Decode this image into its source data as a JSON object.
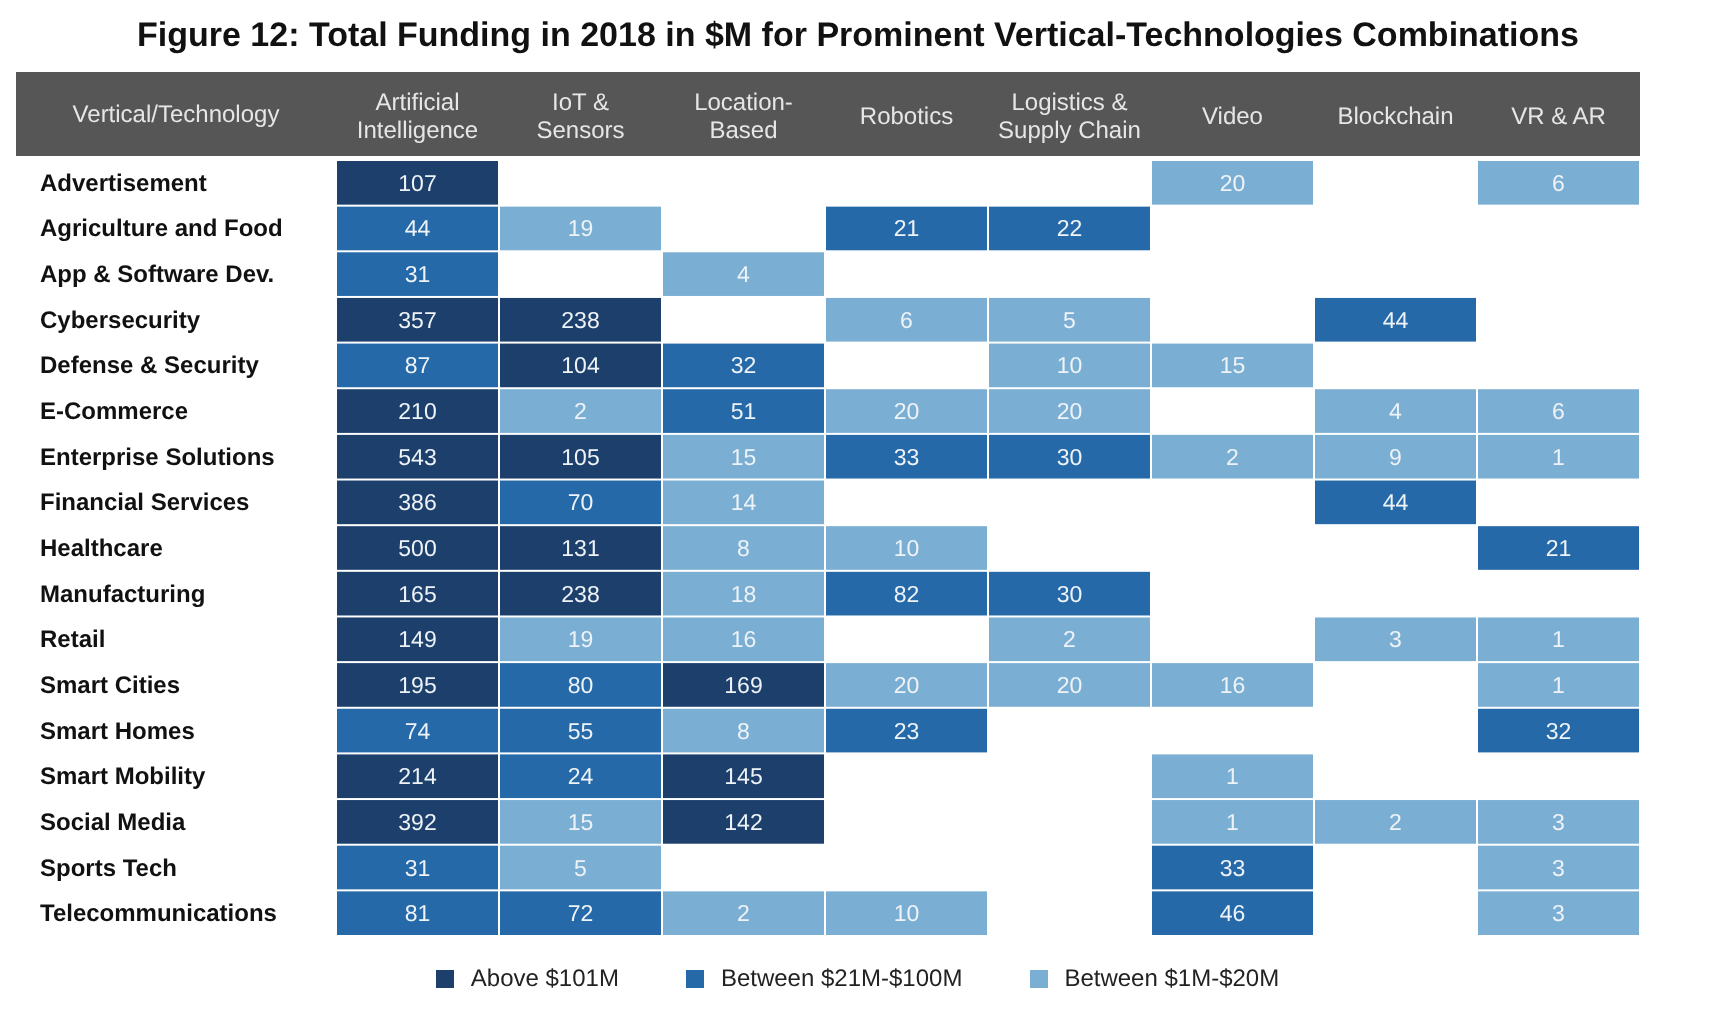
{
  "chart_data": {
    "type": "heatmap",
    "title": "Figure 12: Total Funding in 2018 in $M for Prominent Vertical-Technologies Combinations",
    "ylabel": "Vertical/Technology",
    "categories": [
      "Artificial Intelligence",
      "IoT & Sensors",
      "Location-Based",
      "Robotics",
      "Logistics & Supply Chain",
      "Video",
      "Blockchain",
      "VR & AR"
    ],
    "y_categories": [
      "Advertisement",
      "Agriculture and Food",
      "App & Software Dev.",
      "Cybersecurity",
      "Defense & Security",
      "E-Commerce",
      "Enterprise Solutions",
      "Financial Services",
      "Healthcare",
      "Manufacturing",
      "Retail",
      "Smart Cities",
      "Smart Homes",
      "Smart Mobility",
      "Social Media",
      "Sports Tech",
      "Telecommunications"
    ],
    "cells": [
      [
        107,
        null,
        null,
        null,
        null,
        20,
        null,
        6
      ],
      [
        44,
        19,
        null,
        21,
        22,
        null,
        null,
        null
      ],
      [
        31,
        null,
        4,
        null,
        null,
        null,
        null,
        null
      ],
      [
        357,
        238,
        null,
        6,
        5,
        null,
        44,
        null
      ],
      [
        87,
        104,
        32,
        null,
        10,
        15,
        null,
        null
      ],
      [
        210,
        2,
        51,
        20,
        20,
        null,
        4,
        6
      ],
      [
        543,
        105,
        15,
        33,
        30,
        2,
        9,
        1
      ],
      [
        386,
        70,
        14,
        null,
        null,
        null,
        44,
        null
      ],
      [
        500,
        131,
        8,
        10,
        null,
        null,
        null,
        21
      ],
      [
        165,
        238,
        18,
        82,
        30,
        null,
        null,
        null
      ],
      [
        149,
        19,
        16,
        null,
        2,
        null,
        3,
        1
      ],
      [
        195,
        80,
        169,
        20,
        20,
        16,
        null,
        1
      ],
      [
        74,
        55,
        8,
        23,
        null,
        null,
        null,
        32
      ],
      [
        214,
        24,
        145,
        null,
        null,
        1,
        null,
        null
      ],
      [
        392,
        15,
        142,
        null,
        null,
        1,
        2,
        3
      ],
      [
        31,
        5,
        null,
        null,
        null,
        33,
        null,
        3
      ],
      [
        81,
        72,
        2,
        10,
        null,
        46,
        null,
        3
      ]
    ],
    "colors": [
      [
        "#1d3f6b",
        null,
        null,
        null,
        null,
        "#7aaed3",
        null,
        "#7aaed3"
      ],
      [
        "#2569a8",
        "#7aaed3",
        null,
        "#2569a8",
        "#2569a8",
        null,
        null,
        null
      ],
      [
        "#2569a8",
        null,
        "#7aaed3",
        null,
        null,
        null,
        null,
        null
      ],
      [
        "#1d3f6b",
        "#1d3f6b",
        null,
        "#7aaed3",
        "#7aaed3",
        null,
        "#2569a8",
        null
      ],
      [
        "#2569a8",
        "#1d3f6b",
        "#2569a8",
        null,
        "#7aaed3",
        "#7aaed3",
        null,
        null
      ],
      [
        "#1d3f6b",
        "#7aaed3",
        "#2569a8",
        "#7aaed3",
        "#7aaed3",
        null,
        "#7aaed3",
        "#7aaed3"
      ],
      [
        "#1d3f6b",
        "#1d3f6b",
        "#7aaed3",
        "#2569a8",
        "#2569a8",
        "#7aaed3",
        "#7aaed3",
        "#7aaed3"
      ],
      [
        "#1d3f6b",
        "#2569a8",
        "#7aaed3",
        null,
        null,
        null,
        "#2569a8",
        null
      ],
      [
        "#1d3f6b",
        "#1d3f6b",
        "#7aaed3",
        "#7aaed3",
        null,
        null,
        null,
        "#2569a8"
      ],
      [
        "#1d3f6b",
        "#1d3f6b",
        "#7aaed3",
        "#2569a8",
        "#2569a8",
        null,
        null,
        null
      ],
      [
        "#1d3f6b",
        "#7aaed3",
        "#7aaed3",
        null,
        "#7aaed3",
        null,
        "#7aaed3",
        "#7aaed3"
      ],
      [
        "#1d3f6b",
        "#2569a8",
        "#1d3f6b",
        "#7aaed3",
        "#7aaed3",
        "#7aaed3",
        null,
        "#7aaed3"
      ],
      [
        "#2569a8",
        "#2569a8",
        "#7aaed3",
        "#2569a8",
        null,
        null,
        null,
        "#2569a8"
      ],
      [
        "#1d3f6b",
        "#2569a8",
        "#1d3f6b",
        null,
        null,
        "#7aaed3",
        null,
        null
      ],
      [
        "#1d3f6b",
        "#7aaed3",
        "#1d3f6b",
        null,
        null,
        "#7aaed3",
        "#7aaed3",
        "#7aaed3"
      ],
      [
        "#2569a8",
        "#7aaed3",
        null,
        null,
        null,
        "#2569a8",
        null,
        "#7aaed3"
      ],
      [
        "#2569a8",
        "#2569a8",
        "#7aaed3",
        "#7aaed3",
        null,
        "#2569a8",
        null,
        "#7aaed3"
      ]
    ],
    "series": [
      {
        "name": "Above $101M",
        "color": "#1d3f6b",
        "values": [
          null,
          null,
          null,
          null,
          null,
          null,
          null,
          null
        ]
      },
      {
        "name": "Between $21M-$100M",
        "color": "#2569a8",
        "values": [
          null,
          null,
          null,
          null,
          null,
          null,
          null,
          null
        ]
      },
      {
        "name": "Between $1M-$20M",
        "color": "#7aaed3",
        "values": [
          null,
          null,
          null,
          null,
          null,
          null,
          null,
          null
        ]
      }
    ],
    "legend": "bottom",
    "data_labels": true
  }
}
